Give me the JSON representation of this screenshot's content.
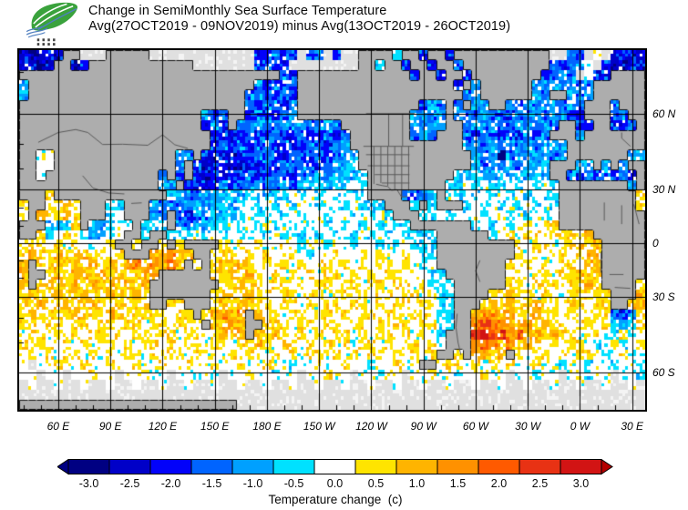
{
  "header": {
    "title_line1": "Change in SemiMonthly Sea Surface Temperature",
    "title_line2": "Avg(27OCT2019 - 09NOV2019) minus Avg(13OCT2019 - 26OCT2019)",
    "logo_name": "green-leaf-waves-logo"
  },
  "axes": {
    "lon_ticks": [
      {
        "label": "60 E",
        "x_deg": 60
      },
      {
        "label": "90 E",
        "x_deg": 90
      },
      {
        "label": "120 E",
        "x_deg": 120
      },
      {
        "label": "150 E",
        "x_deg": 150
      },
      {
        "label": "180 E",
        "x_deg": 180
      },
      {
        "label": "150 W",
        "x_deg": 210
      },
      {
        "label": "120 W",
        "x_deg": 240
      },
      {
        "label": "90 W",
        "x_deg": 270
      },
      {
        "label": "60 W",
        "x_deg": 300
      },
      {
        "label": "30 W",
        "x_deg": 330
      },
      {
        "label": "0 W",
        "x_deg": 360
      },
      {
        "label": "30 E",
        "x_deg": 390
      }
    ],
    "lat_ticks": [
      {
        "label": "60 N",
        "lat": 60
      },
      {
        "label": "30 N",
        "lat": 30
      },
      {
        "label": "0",
        "lat": 0
      },
      {
        "label": "30 S",
        "lat": -30
      },
      {
        "label": "60 S",
        "lat": -60
      }
    ]
  },
  "colorbar": {
    "title": "Temperature change  (c)",
    "tick_labels": [
      "-3.0",
      "-2.5",
      "-2.0",
      "-1.5",
      "-1.0",
      "-0.5",
      "0.0",
      "0.5",
      "1.0",
      "1.5",
      "2.0",
      "2.5",
      "3.0"
    ],
    "segment_colors": [
      "#000082",
      "#0000C8",
      "#0202FA",
      "#0064FF",
      "#00A0FF",
      "#00E1FF",
      "#FFFFFF",
      "#FFE400",
      "#FFB400",
      "#FF9100",
      "#FF5A00",
      "#E83214",
      "#D21414"
    ],
    "arrow_left_color": "#000082",
    "arrow_right_color": "#B40000"
  },
  "map_colors": {
    "land": "#ADADAD",
    "no_data": "#E0E0E0",
    "ocean_zero": "#FFFFFF",
    "coastline": "#141414",
    "grid_line": "#000000",
    "political_border": "#5a5a5a"
  },
  "chart_data": {
    "type": "heatmap",
    "title": "Change in SemiMonthly Sea Surface Temperature",
    "subtitle": "Avg(27OCT2019 - 09NOV2019) minus Avg(13OCT2019 - 26OCT2019)",
    "units": "c",
    "projection": "mercator",
    "lon_range_deg_east": [
      37.5,
      397.5
    ],
    "lat_range": [
      -69.2,
      74
    ],
    "colorbar_values": [
      -3,
      -2.5,
      -2,
      -1.5,
      -1,
      -0.5,
      0,
      0.5,
      1,
      1.5,
      2,
      2.5,
      3
    ],
    "palette": {
      "a": "#000082",
      "b": "#0000C8",
      "c": "#0202FA",
      "d": "#0064FF",
      "e": "#00A0FF",
      "f": "#00E1FF",
      ".": "#FFFFFF",
      "g": "#FFE400",
      "h": "#FFB400",
      "i": "#FF9100",
      "j": "#FF5A00",
      "k": "#E83214",
      "l": "#D21414",
      "L": "#ADADAD",
      "x": "#E0E0E0"
    },
    "class_values": {
      "a": -3.0,
      "b": -2.5,
      "c": -2.0,
      "d": -1.5,
      "e": -1.0,
      "f": -0.5,
      ".": 0.0,
      "g": 0.5,
      "h": 1.0,
      "i": 1.5,
      "j": 2.0,
      "k": 2.5,
      "l": 3.0,
      "L": "land",
      "x": "no-data"
    },
    "grid": {
      "cols": 72,
      "rows": 36,
      "lon_start_deg_east": 37.5,
      "lon_step_deg": 5,
      "row_spacing": "equal-mercator-bands",
      "rows_data": [
        "babcbLLxxxLLLLLxxxxxxxxxxxxccdccxcdxcxxLLLLfLLcLLcLLLLLLLLLLLxxdcx.xbcbb",
        "bbabLLbcLLLLLLLLLLLLxxxxxxxcdccxxxxxxxxLLfLLcLLcLLcLLLLLLLLLLdcdd.xcbbcb",
        "LLLLLLLLLLLLLLLLLLLLLLLLLLLLLLdcLLLLLLLLLLLLLcLLcLLcLLLLLLLLcdedx.ccLLLL",
        "eLLLLLLLLLLLLLLLLLLLLLLLLLLdcdccLLLLLLLLLLLLLLLLLLcLeLLLLLLddededdLLLLLL",
        "eLLLLLLLLLLLLLLLLLLLLLLLLLddccdcLLLLLLLLLLLLLLLLLLLdeLLLLLLedLLedeLLLLLL",
        "LLLLLLLLLLLLLLLLLLLLLLLLLLdcddcdLLLLLLLLLLLLLLdedLdLeeLLededeededLLLdLLL",
        "LLLLLLLLLLLLLLLLLLLLLdcdLLcdccdeLLLLLLLLLLLLLeedeLeddeddcddededccLLLddLL",
        "LLLLLLLLLLLLLLLLLLLLLcdcLddeddededdedLLLLLLLLedeeLLdededdeddedLLccLLccdL",
        "LLLLLLLLLLLLLLLLLLLLLLccccdccdccdccdcdLLLLLLLdedLLLdcddcdcdcdLLLeLLLLLLL",
        "LLLLLLLLLLLLLLLLLLLLLLcdcdcddcdccdccdeLLLLLLLLLLLLLdededededeeeLLLLLLLLL",
        "LL..LLLLLLLLLLLLLLedLcbcbccdcccdccdcdeeLLLLLLLLLLLLLedeьdedeedeLLLLLLLee",
        "LL..LLLLLLLLLLLLLLdLcbbcbbccdcdcdccdeefLLLLLLLLLLLLLedededeefLLLeeLeLeLL",
        "LL.LLLLLLLLLLLLLdLcLcbcbccdccdccddedefefLLLLLLLLLLfefeefefefeLLdcdcdcdcL",
        "LLLLLLLLLLLLLLLLedLcbccdcddeddedeefeff.fLLLLLLLLLff.f.ff.f.f.fLLLLLLLLeL",
        "LLLgLLLLLLLLLLLLLfedddeefeffeff.f.f.f.ffLLLLdcdfL.f.f.f.f.f.ffLLLLLLLLLg",
        "gLLgghgLLLffLLLedddeedefef.f.f.f..f..f.fffLLLfLfLLLf.f.f.f.f.fLLLLLLLLLg",
        "gLhhghgLLLf.LLLedLdcddeeff.f..f.f..f..f.f.fLLLff.f.f.f..f.f.f.LLLLLLLLLL",
        "LLLeefgLeef.fLfffLddeeff.f.f.f.f.f.f.f.f.f.ffLLLLLLLf.f.f.g.ggLLLLLLLLLL",
        "LLgf.g.feef.LLfLLfff.f.f.ff.f.f.f.f.f.f.f.f.ffffLLLLLLf.g.gg.gggghLLLLLL",
        "ggg.g.g.f.gLLgLLgLgLLLLg.g.g..g.f..f..f..f.f.fffLLLLLLLLLg.gg.gghghLLLLL",
        "ghgghgghgg.gLLLihihhLLggg.g.g..g.f..g..g.g..g.ffLLLLLLLLLg.g.gg.ghhLLLLL",
        "hLgghghghghghihihihLgLghghg.g.g.g.gg.g.g.gg.g.f.LLLLLLLLg.g.g.gg.hhLLLLL",
        "hLLghghhghghghhhLLLLLLgghghg.g.g.g.gg.g.g.gg.g.ffLLLLLLLgg.gg.gghghLLLLL",
        "hLghgghghghghghLLLLLLLLgghgg.gg.g.gg.gg.gg.gg.gfffLLLLLLgg.ggg.gghgLLLLg",
        "ghgghgghgghgghgLLLLLLLghhghgg.gg.gg.gg.g.gg.gg.gffLLLLgghgg.gg.gggggLLLh",
        "gghgghgghgghgggLLggLLLghghhgg.gg.g.gg.gg.g.gg.ggffLLLghghgghgg.gg.ggLLhh",
        "ghgggghggghgggggg.ggLghihiLhgg.gg.gg.g.gg.gg.gg.ffLLhiihhgghgg.g.gggdcdg",
        "gg.gg.gg.gg.gg.gg.gggLhhihLLhgg.gg.gg.gg.g.gg.ggffLLjkjiihighgg.gg.gfefg",
        ".gg.g.g.gg.g.gg.gg.gg.ghghLhghg.g.g.gg.g.gg.g.g.fLLLkljkijhighgg.gg.fgf.",
        "g.gg.g.g.gg.g.gg.g.gg.gg.gghg.gg.g.g.g.gg.g.gg.gfLLLijihighg.g.gg.f.gf.g",
        ".g.g.gg.g.g.gg.g.gg.g.g.g.gg.g.g.gg.g.g.gg.g.g.gLLgLhhghLg.gg.g.gg.f.gf.",
        ".x..g..g..g..g..g..g..g..g..g..f..g..g..f..g..LL.gg.g.g.g..g..f..f..f..f",
        "..x..x..g..x..g..x..f..x..g..f..x..g..x..f..x..g..f..g..x..f..x..f..x..f",
        "x.xx.xx.xx.xx.xx.xx.xx.xx.xx.xx.xx.xx.xx.xx.xx.xx.xx.xx.xx.xx.xx.xx.xx.x",
        "xxxxxxxxxxxxxxxxxxxxxxxxxxxxxxxxxxxxxxxxxxxxxxxxxxxxxxxxxxxxxxxxxxxxxxxx",
        "LLLLLLLLLLLLLLLLLLLLLLLLLxxxxxxxxxxxxxxxxxxxxxxxxxxxxxxxxxxxxxxxxxxxxxxx"
      ]
    },
    "key_features": [
      "Broad cooling (-1 to -2.5 c) across the mid-latitude North Pacific and Bering Sea",
      "Strong cooling east of Japan (Kuroshio-Oyashio region)",
      "Widespread cooling over the North Atlantic, Norwegian Sea, Baltic and Mediterranean",
      "Cooling patch in the Philippine Sea and northern South China Sea",
      "Localized cooling cell in the western Gulf of Mexico",
      "Widespread warming (+0.5 to +1.5 c) over the tropical and southern Indian Ocean",
      "Warming around Indonesia, the Tasman Sea and near New Zealand",
      "Intense warming patch (+2 to +3 c) in the Southwest Atlantic east of Argentina",
      "Cooling blob south of South Africa (Agulhas region)",
      "Light-gray no-data band poleward of about 55 S and over Arctic ice"
    ]
  }
}
